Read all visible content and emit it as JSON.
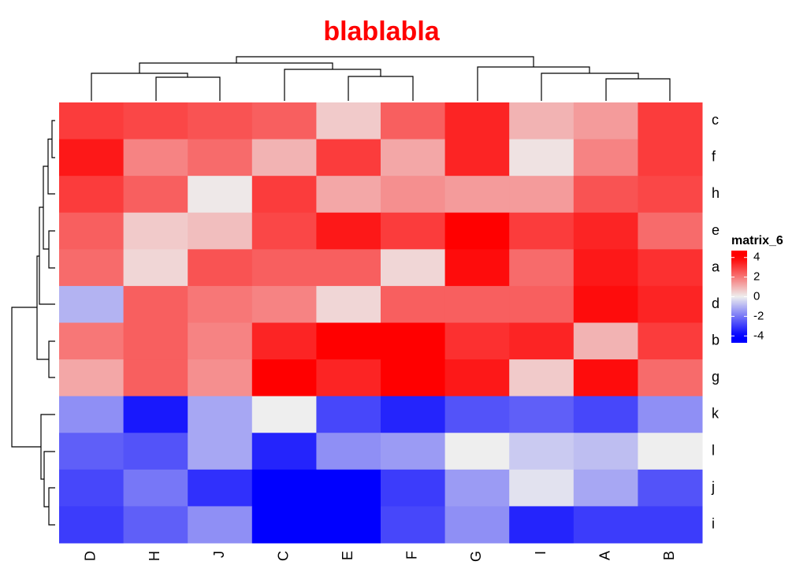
{
  "chart_data": {
    "type": "heatmap",
    "title": "blablabla",
    "columns": [
      "D",
      "H",
      "J",
      "C",
      "E",
      "F",
      "G",
      "I",
      "A",
      "B"
    ],
    "rows": [
      "c",
      "f",
      "h",
      "e",
      "a",
      "d",
      "b",
      "g",
      "k",
      "l",
      "j",
      "i"
    ],
    "values": [
      [
        3.0,
        2.8,
        2.6,
        2.4,
        0.6,
        2.4,
        3.4,
        1.0,
        1.4,
        3.0
      ],
      [
        3.6,
        1.8,
        2.2,
        1.0,
        3.0,
        1.2,
        3.4,
        0.2,
        1.8,
        3.0
      ],
      [
        3.0,
        2.4,
        0.1,
        3.0,
        1.2,
        1.6,
        1.4,
        1.4,
        2.6,
        2.8
      ],
      [
        2.4,
        0.6,
        0.8,
        2.8,
        3.6,
        3.0,
        4.6,
        3.0,
        3.4,
        2.2
      ],
      [
        2.2,
        0.4,
        2.6,
        2.4,
        2.4,
        0.4,
        3.8,
        2.2,
        3.6,
        3.2
      ],
      [
        -1.0,
        2.4,
        2.0,
        1.8,
        0.4,
        2.4,
        2.4,
        2.4,
        3.8,
        3.4
      ],
      [
        2.0,
        2.4,
        1.8,
        3.4,
        4.0,
        4.6,
        3.2,
        3.4,
        1.0,
        3.0
      ],
      [
        1.2,
        2.4,
        1.6,
        4.0,
        3.4,
        4.0,
        3.6,
        0.6,
        3.8,
        2.2
      ],
      [
        -1.6,
        -3.6,
        -1.2,
        0.0,
        -2.8,
        -3.4,
        -2.6,
        -2.4,
        -2.8,
        -1.6
      ],
      [
        -2.4,
        -2.6,
        -1.2,
        -3.4,
        -1.6,
        -1.4,
        0.0,
        -0.6,
        -0.8,
        0.0
      ],
      [
        -2.8,
        -2.0,
        -3.2,
        -4.6,
        -4.6,
        -3.0,
        -1.4,
        -0.2,
        -1.2,
        -2.6
      ],
      [
        -3.0,
        -2.4,
        -1.6,
        -4.4,
        -4.0,
        -2.8,
        -1.6,
        -3.4,
        -3.0,
        -3.0
      ]
    ],
    "color_breaks": [
      -4,
      0,
      4
    ],
    "colors": [
      "#0000FF",
      "#EEEEEE",
      "#FF0000"
    ],
    "legend": {
      "title": "matrix_6",
      "lim": [
        -4.7,
        4.7
      ],
      "ticks": [
        4,
        2,
        0,
        -2,
        -4
      ]
    }
  }
}
